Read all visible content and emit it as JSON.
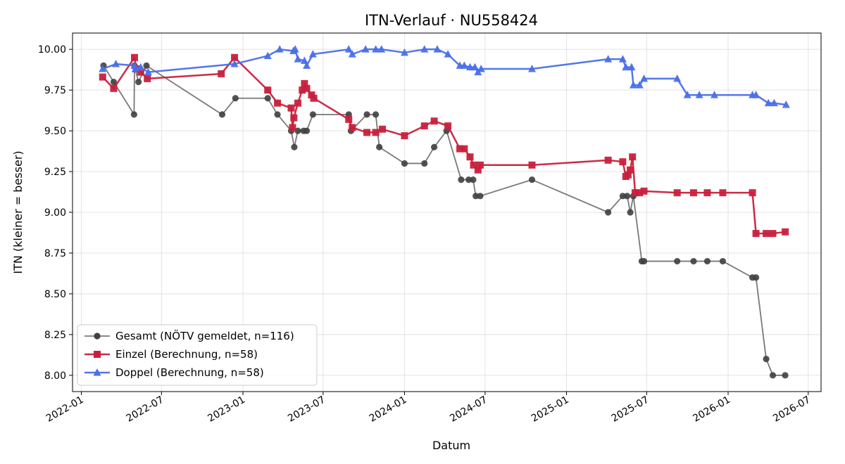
{
  "chart_data": {
    "type": "line",
    "title": "ITN-Verlauf · NU558424",
    "xlabel": "Datum",
    "ylabel": "ITN  (kleiner = besser)",
    "ylim": [
      7.9,
      10.1
    ],
    "xlim": [
      "2021-12-12",
      "2026-07-30"
    ],
    "y_ticks": [
      "8.00",
      "8.25",
      "8.50",
      "8.75",
      "9.00",
      "9.25",
      "9.50",
      "9.75",
      "10.00"
    ],
    "x_ticks": [
      "2022-01",
      "2022-07",
      "2023-01",
      "2023-07",
      "2024-01",
      "2024-07",
      "2025-01",
      "2025-07",
      "2026-01",
      "2026-07"
    ],
    "grid": true,
    "legend_position": "lower-left",
    "series": [
      {
        "name": "Gesamt (NÖTV gemeldet, n=116)",
        "color": "#404040",
        "marker": "circle",
        "points": [
          [
            "2022-02-20",
            9.9
          ],
          [
            "2022-03-15",
            9.8
          ],
          [
            "2022-04-30",
            9.6
          ],
          [
            "2022-05-01",
            9.9
          ],
          [
            "2022-05-10",
            9.8
          ],
          [
            "2022-05-28",
            9.9
          ],
          [
            "2022-11-15",
            9.6
          ],
          [
            "2022-12-15",
            9.7
          ],
          [
            "2023-02-26",
            9.7
          ],
          [
            "2023-03-20",
            9.6
          ],
          [
            "2023-04-20",
            9.5
          ],
          [
            "2023-04-27",
            9.4
          ],
          [
            "2023-05-05",
            9.5
          ],
          [
            "2023-05-18",
            9.5
          ],
          [
            "2023-05-25",
            9.5
          ],
          [
            "2023-06-08",
            9.6
          ],
          [
            "2023-08-28",
            9.6
          ],
          [
            "2023-09-02",
            9.5
          ],
          [
            "2023-10-08",
            9.6
          ],
          [
            "2023-10-28",
            9.6
          ],
          [
            "2023-11-05",
            9.4
          ],
          [
            "2024-01-01",
            9.3
          ],
          [
            "2024-02-15",
            9.3
          ],
          [
            "2024-03-08",
            9.4
          ],
          [
            "2024-04-05",
            9.5
          ],
          [
            "2024-05-08",
            9.2
          ],
          [
            "2024-05-25",
            9.2
          ],
          [
            "2024-06-04",
            9.2
          ],
          [
            "2024-06-10",
            9.1
          ],
          [
            "2024-06-20",
            9.1
          ],
          [
            "2024-10-15",
            9.2
          ],
          [
            "2025-04-05",
            9.0
          ],
          [
            "2025-05-08",
            9.1
          ],
          [
            "2025-05-18",
            9.1
          ],
          [
            "2025-05-25",
            9.0
          ],
          [
            "2025-06-01",
            9.1
          ],
          [
            "2025-06-20",
            8.7
          ],
          [
            "2025-06-25",
            8.7
          ],
          [
            "2025-09-08",
            8.7
          ],
          [
            "2025-10-15",
            8.7
          ],
          [
            "2025-11-15",
            8.7
          ],
          [
            "2025-12-20",
            8.7
          ],
          [
            "2026-02-25",
            8.6
          ],
          [
            "2026-03-05",
            8.6
          ],
          [
            "2026-03-28",
            8.1
          ],
          [
            "2026-04-12",
            8.0
          ],
          [
            "2026-05-10",
            8.0
          ]
        ]
      },
      {
        "name": "Einzel (Berechnung, n=58)",
        "color": "#c8203c",
        "marker": "square",
        "points": [
          [
            "2022-02-18",
            9.83
          ],
          [
            "2022-03-15",
            9.76
          ],
          [
            "2022-05-01",
            9.95
          ],
          [
            "2022-05-05",
            9.88
          ],
          [
            "2022-05-15",
            9.86
          ],
          [
            "2022-05-30",
            9.82
          ],
          [
            "2022-11-13",
            9.85
          ],
          [
            "2022-12-13",
            9.95
          ],
          [
            "2023-02-26",
            9.75
          ],
          [
            "2023-03-20",
            9.67
          ],
          [
            "2023-04-20",
            9.64
          ],
          [
            "2023-04-23",
            9.52
          ],
          [
            "2023-04-26",
            9.58
          ],
          [
            "2023-05-05",
            9.67
          ],
          [
            "2023-05-15",
            9.75
          ],
          [
            "2023-05-20",
            9.79
          ],
          [
            "2023-05-25",
            9.76
          ],
          [
            "2023-06-05",
            9.72
          ],
          [
            "2023-06-10",
            9.7
          ],
          [
            "2023-08-28",
            9.57
          ],
          [
            "2023-09-05",
            9.52
          ],
          [
            "2023-10-08",
            9.49
          ],
          [
            "2023-10-28",
            9.49
          ],
          [
            "2023-11-12",
            9.51
          ],
          [
            "2024-01-01",
            9.47
          ],
          [
            "2024-02-15",
            9.53
          ],
          [
            "2024-03-08",
            9.56
          ],
          [
            "2024-04-08",
            9.53
          ],
          [
            "2024-05-05",
            9.39
          ],
          [
            "2024-05-15",
            9.39
          ],
          [
            "2024-05-28",
            9.34
          ],
          [
            "2024-06-05",
            9.29
          ],
          [
            "2024-06-15",
            9.26
          ],
          [
            "2024-06-20",
            9.29
          ],
          [
            "2024-10-15",
            9.29
          ],
          [
            "2025-04-05",
            9.32
          ],
          [
            "2025-05-08",
            9.31
          ],
          [
            "2025-05-15",
            9.22
          ],
          [
            "2025-05-20",
            9.23
          ],
          [
            "2025-05-25",
            9.26
          ],
          [
            "2025-05-30",
            9.34
          ],
          [
            "2025-06-05",
            9.12
          ],
          [
            "2025-06-15",
            9.12
          ],
          [
            "2025-06-25",
            9.13
          ],
          [
            "2025-09-08",
            9.12
          ],
          [
            "2025-10-15",
            9.12
          ],
          [
            "2025-11-15",
            9.12
          ],
          [
            "2025-12-20",
            9.12
          ],
          [
            "2026-02-25",
            9.12
          ],
          [
            "2026-03-05",
            8.87
          ],
          [
            "2026-03-28",
            8.87
          ],
          [
            "2026-04-12",
            8.87
          ],
          [
            "2026-05-10",
            8.88
          ]
        ]
      },
      {
        "name": "Doppel (Berechnung, n=58)",
        "color": "#4a6fe8",
        "marker": "triangle",
        "points": [
          [
            "2022-02-18",
            9.88
          ],
          [
            "2022-03-20",
            9.91
          ],
          [
            "2022-05-01",
            9.9
          ],
          [
            "2022-05-03",
            9.88
          ],
          [
            "2022-05-15",
            9.89
          ],
          [
            "2022-06-01",
            9.86
          ],
          [
            "2022-12-13",
            9.91
          ],
          [
            "2023-02-26",
            9.96
          ],
          [
            "2023-03-25",
            10.0
          ],
          [
            "2023-04-25",
            9.99
          ],
          [
            "2023-04-29",
            10.0
          ],
          [
            "2023-05-05",
            9.94
          ],
          [
            "2023-05-20",
            9.93
          ],
          [
            "2023-05-25",
            9.9
          ],
          [
            "2023-06-08",
            9.97
          ],
          [
            "2023-08-28",
            10.0
          ],
          [
            "2023-09-05",
            9.97
          ],
          [
            "2023-10-05",
            10.0
          ],
          [
            "2023-10-28",
            10.0
          ],
          [
            "2023-11-10",
            10.0
          ],
          [
            "2024-01-01",
            9.98
          ],
          [
            "2024-02-15",
            10.0
          ],
          [
            "2024-03-15",
            10.0
          ],
          [
            "2024-04-08",
            9.97
          ],
          [
            "2024-05-05",
            9.9
          ],
          [
            "2024-05-15",
            9.9
          ],
          [
            "2024-05-28",
            9.89
          ],
          [
            "2024-06-08",
            9.89
          ],
          [
            "2024-06-15",
            9.86
          ],
          [
            "2024-06-22",
            9.88
          ],
          [
            "2024-10-15",
            9.88
          ],
          [
            "2025-04-05",
            9.94
          ],
          [
            "2025-05-08",
            9.94
          ],
          [
            "2025-05-15",
            9.89
          ],
          [
            "2025-05-28",
            9.89
          ],
          [
            "2025-06-01",
            9.78
          ],
          [
            "2025-06-15",
            9.78
          ],
          [
            "2025-06-25",
            9.82
          ],
          [
            "2025-09-08",
            9.82
          ],
          [
            "2025-10-01",
            9.72
          ],
          [
            "2025-10-28",
            9.72
          ],
          [
            "2025-12-01",
            9.72
          ],
          [
            "2026-02-25",
            9.72
          ],
          [
            "2026-03-05",
            9.72
          ],
          [
            "2026-04-02",
            9.67
          ],
          [
            "2026-04-15",
            9.67
          ],
          [
            "2026-05-12",
            9.66
          ]
        ]
      }
    ]
  }
}
